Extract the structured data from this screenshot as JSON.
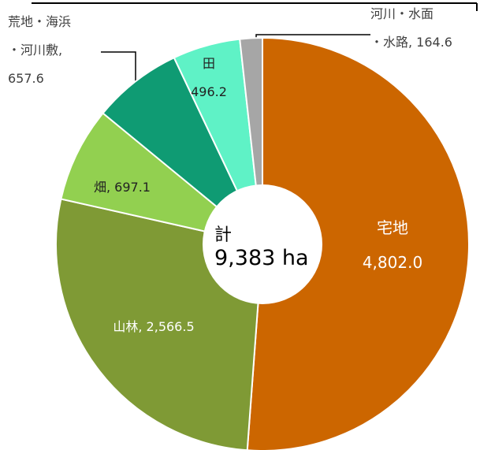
{
  "chart_data": {
    "type": "donut",
    "values": [
      4802.0,
      2566.5,
      697.1,
      657.6,
      496.2,
      164.6
    ],
    "value_labels": [
      "宅地\n4,802.0",
      "山林, 2,566.5",
      "畑, 697.1",
      "荒地・海浜\n・河川敷,\n657.6",
      "田\n496.2",
      "河川・水面\n・水路, 164.6"
    ],
    "colors": [
      "#cc6600",
      "#7f9a35",
      "#92d050",
      "#0f9b73",
      "#5ff2c6",
      "#a6a6a6"
    ],
    "center_title": "計",
    "center_total": "9,383 ha"
  }
}
